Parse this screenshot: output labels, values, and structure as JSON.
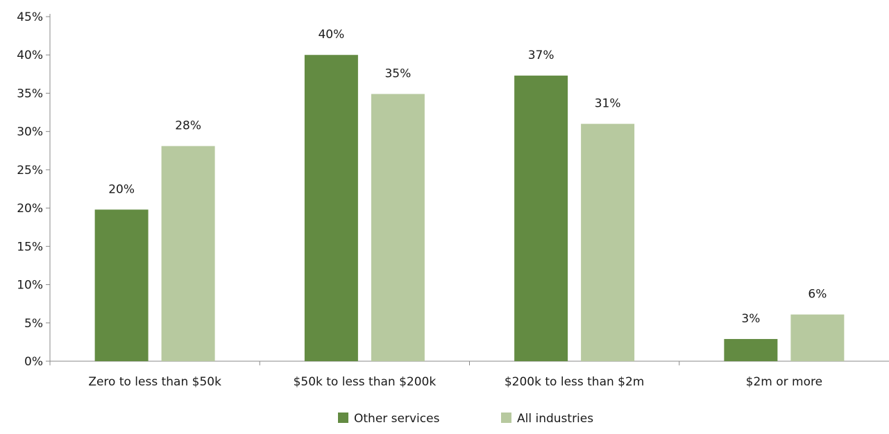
{
  "chart_data": {
    "type": "bar",
    "categories": [
      "Zero to less than $50k",
      "$50k to less than $200k",
      "$200k to less than $2m",
      "$2m or more"
    ],
    "series": [
      {
        "name": "Other services",
        "values": [
          19.8,
          40.0,
          37.3,
          2.9
        ],
        "labels": [
          "20%",
          "40%",
          "37%",
          "3%"
        ],
        "color": "#638b42"
      },
      {
        "name": "All industries",
        "values": [
          28.1,
          34.9,
          31.0,
          6.1
        ],
        "labels": [
          "28%",
          "35%",
          "31%",
          "6%"
        ],
        "color": "#b7c99f"
      }
    ],
    "ylim": [
      0,
      45
    ],
    "yticks": [
      0,
      5,
      10,
      15,
      20,
      25,
      30,
      35,
      40,
      45
    ],
    "ytick_labels": [
      "0%",
      "5%",
      "10%",
      "15%",
      "20%",
      "25%",
      "30%",
      "35%",
      "40%",
      "45%"
    ],
    "grid": false,
    "legend": "bottom-center",
    "axis_color": "#888888"
  }
}
